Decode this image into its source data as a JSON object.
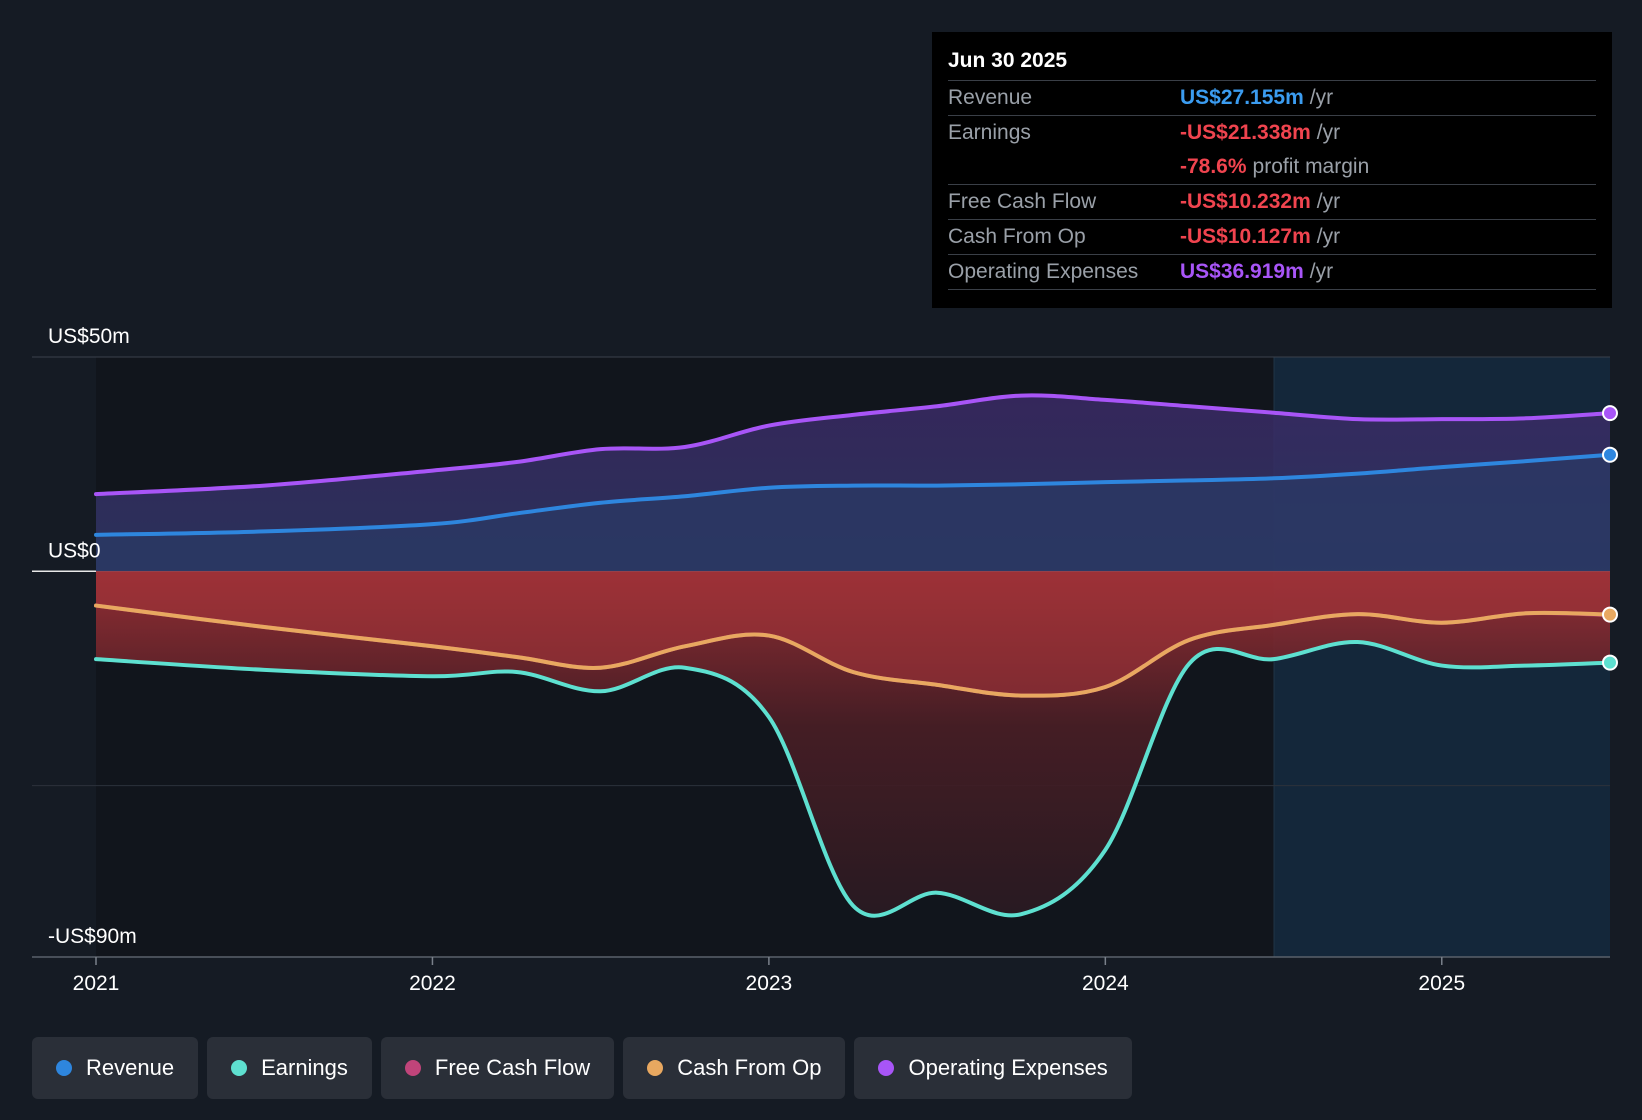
{
  "chart_data": {
    "type": "line",
    "title": "",
    "x_ticks": [
      2021,
      2022,
      2023,
      2024,
      2025
    ],
    "y_ticks": [
      {
        "value": 50,
        "label": "US$50m"
      },
      {
        "value": 0,
        "label": "US$0"
      },
      {
        "value": -90,
        "label": "-US$90m"
      }
    ],
    "ylim": [
      -90,
      50
    ],
    "xlim": [
      2021.0,
      2025.5
    ],
    "forecast_start": 2024.5,
    "series": [
      {
        "name": "Operating Expenses",
        "key": "opex",
        "color": "#a855f7",
        "fill": "#3a2560",
        "points": [
          [
            2021.0,
            18
          ],
          [
            2021.5,
            20
          ],
          [
            2022.0,
            23.5
          ],
          [
            2022.25,
            25.5
          ],
          [
            2022.5,
            28.5
          ],
          [
            2022.75,
            29
          ],
          [
            2023.0,
            34
          ],
          [
            2023.25,
            36.5
          ],
          [
            2023.5,
            38.5
          ],
          [
            2023.75,
            41
          ],
          [
            2024.0,
            40
          ],
          [
            2024.25,
            38.5
          ],
          [
            2024.5,
            37
          ],
          [
            2024.75,
            35.5
          ],
          [
            2025.0,
            35.5
          ],
          [
            2025.25,
            35.7
          ],
          [
            2025.5,
            36.9
          ]
        ]
      },
      {
        "name": "Revenue",
        "key": "revenue",
        "color": "#2e86de",
        "fill": "#2a3a60",
        "points": [
          [
            2021.0,
            8.5
          ],
          [
            2021.5,
            9.3
          ],
          [
            2022.0,
            11
          ],
          [
            2022.25,
            13.5
          ],
          [
            2022.5,
            16
          ],
          [
            2022.75,
            17.5
          ],
          [
            2023.0,
            19.5
          ],
          [
            2023.25,
            20
          ],
          [
            2023.5,
            20
          ],
          [
            2023.75,
            20.3
          ],
          [
            2024.0,
            20.8
          ],
          [
            2024.25,
            21.2
          ],
          [
            2024.5,
            21.7
          ],
          [
            2024.75,
            22.8
          ],
          [
            2025.0,
            24.3
          ],
          [
            2025.25,
            25.7
          ],
          [
            2025.5,
            27.2
          ]
        ]
      },
      {
        "name": "Cash From Op",
        "key": "cfo",
        "color": "#e8a860",
        "fill": "",
        "points": [
          [
            2021.0,
            -8
          ],
          [
            2021.5,
            -13
          ],
          [
            2022.0,
            -17.5
          ],
          [
            2022.25,
            -20
          ],
          [
            2022.5,
            -22.5
          ],
          [
            2022.75,
            -17.5
          ],
          [
            2023.0,
            -15
          ],
          [
            2023.25,
            -23.5
          ],
          [
            2023.5,
            -26.5
          ],
          [
            2023.75,
            -29
          ],
          [
            2024.0,
            -27
          ],
          [
            2024.25,
            -16
          ],
          [
            2024.5,
            -12.5
          ],
          [
            2024.75,
            -10
          ],
          [
            2025.0,
            -12
          ],
          [
            2025.25,
            -9.8
          ],
          [
            2025.5,
            -10.1
          ]
        ]
      },
      {
        "name": "Free Cash Flow",
        "key": "fcf",
        "color": "#c0447a",
        "fill": "",
        "points": [
          [
            2021.0,
            -8
          ],
          [
            2021.5,
            -13
          ],
          [
            2022.0,
            -17.5
          ],
          [
            2022.25,
            -20
          ],
          [
            2022.5,
            -22.5
          ],
          [
            2022.75,
            -17.5
          ],
          [
            2023.0,
            -15
          ],
          [
            2023.25,
            -23.5
          ],
          [
            2023.5,
            -26.5
          ],
          [
            2023.75,
            -29
          ],
          [
            2024.0,
            -27
          ],
          [
            2024.25,
            -16
          ],
          [
            2024.5,
            -12.5
          ],
          [
            2024.75,
            -10
          ],
          [
            2025.0,
            -12
          ],
          [
            2025.25,
            -9.8
          ],
          [
            2025.5,
            -10.2
          ]
        ]
      },
      {
        "name": "Earnings",
        "key": "earnings",
        "color": "#5ee0d0",
        "fill": "",
        "points": [
          [
            2021.0,
            -20.5
          ],
          [
            2021.5,
            -23
          ],
          [
            2022.0,
            -24.5
          ],
          [
            2022.25,
            -23.5
          ],
          [
            2022.5,
            -28
          ],
          [
            2022.75,
            -22.5
          ],
          [
            2023.0,
            -34
          ],
          [
            2023.25,
            -78
          ],
          [
            2023.5,
            -75
          ],
          [
            2023.75,
            -80
          ],
          [
            2024.0,
            -65
          ],
          [
            2024.25,
            -21.5
          ],
          [
            2024.5,
            -20.5
          ],
          [
            2024.75,
            -16.5
          ],
          [
            2025.0,
            -22
          ],
          [
            2025.25,
            -22
          ],
          [
            2025.5,
            -21.3
          ]
        ]
      }
    ]
  },
  "tooltip": {
    "date": "Jun 30 2025",
    "rows": [
      {
        "label": "Revenue",
        "value": "US$27.155m",
        "unit": "/yr",
        "color": "#3b9cf0"
      },
      {
        "label": "Earnings",
        "value": "-US$21.338m",
        "unit": "/yr",
        "color": "#f0444f"
      },
      {
        "label": "",
        "value": "-78.6%",
        "unit": "profit margin",
        "color": "#f0444f"
      },
      {
        "label": "Free Cash Flow",
        "value": "-US$10.232m",
        "unit": "/yr",
        "color": "#f0444f"
      },
      {
        "label": "Cash From Op",
        "value": "-US$10.127m",
        "unit": "/yr",
        "color": "#f0444f"
      },
      {
        "label": "Operating Expenses",
        "value": "US$36.919m",
        "unit": "/yr",
        "color": "#a855f7"
      }
    ]
  },
  "legend": [
    {
      "label": "Revenue",
      "color": "#2e86de"
    },
    {
      "label": "Earnings",
      "color": "#5ee0d0"
    },
    {
      "label": "Free Cash Flow",
      "color": "#c0447a"
    },
    {
      "label": "Cash From Op",
      "color": "#e8a860"
    },
    {
      "label": "Operating Expenses",
      "color": "#a855f7"
    }
  ]
}
